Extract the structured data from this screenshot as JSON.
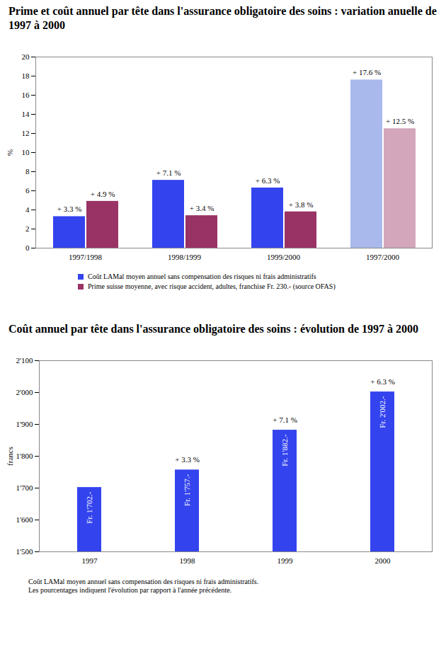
{
  "chart_data": [
    {
      "type": "bar",
      "title": "Prime et coût annuel par tête dans l'assurance obligatoire des soins : variation anuelle de 1997 à 2000",
      "categories": [
        "1997/1998",
        "1998/1999",
        "1999/2000",
        "1997/2000"
      ],
      "series": [
        {
          "name": "Coût LAMal moyen annuel sans compensation des risques ni frais administratifs",
          "color": "#3344ee",
          "colors": [
            "#3344ee",
            "#3344ee",
            "#3344ee",
            "#a9b9ec"
          ],
          "values": [
            3.3,
            7.1,
            6.3,
            17.6
          ],
          "value_labels": [
            "+ 3.3 %",
            "+ 7.1 %",
            "+ 6.3 %",
            "+ 17.6 %"
          ]
        },
        {
          "name": "Prime suisse moyenne, avec risque accident, adultes, franchise Fr. 230.- (source OFAS)",
          "color": "#993366",
          "colors": [
            "#993366",
            "#993366",
            "#993366",
            "#d3a6bb"
          ],
          "values": [
            4.9,
            3.4,
            3.8,
            12.5
          ],
          "value_labels": [
            "+ 4.9 %",
            "+ 3.4 %",
            "+ 3.8 %",
            "+ 12.5 %"
          ]
        }
      ],
      "ylabel": "%",
      "ylim": [
        0,
        20
      ],
      "yticks": [
        0,
        2,
        4,
        6,
        8,
        10,
        12,
        14,
        16,
        18,
        20
      ],
      "grid": false,
      "legend": "bottom",
      "data_labels": true
    },
    {
      "type": "bar",
      "title": "Coût annuel par tête dans l'assurance obligatoire des soins : évolution de 1997 à 2000",
      "categories": [
        "1997",
        "1998",
        "1999",
        "2000"
      ],
      "values": [
        1702,
        1757,
        1882,
        2002
      ],
      "value_labels": [
        "Fr. 1'702.-",
        "Fr. 1'757.-",
        "Fr. 1'882.-",
        "Fr. 2'002.-"
      ],
      "change_labels": [
        null,
        "+ 3.3 %",
        "+ 7.1 %",
        "+ 6.3 %"
      ],
      "color": "#3344ee",
      "ylabel": "francs",
      "ylim": [
        1500,
        2100
      ],
      "yticks": [
        {
          "value": 1500,
          "label": "1'500"
        },
        {
          "value": 1600,
          "label": "1'600"
        },
        {
          "value": 1700,
          "label": "1'700"
        },
        {
          "value": 1800,
          "label": "1'800"
        },
        {
          "value": 1900,
          "label": "1'900"
        },
        {
          "value": 2000,
          "label": "2'000"
        },
        {
          "value": 2100,
          "label": "2'100"
        }
      ],
      "grid": false,
      "data_labels": true,
      "notes": [
        "Coût LAMal moyen annuel sans compensation des risques ni frais administratifs.",
        "Les pourcentages indiquent l'évolution par rapport à l'année précédente."
      ]
    }
  ]
}
